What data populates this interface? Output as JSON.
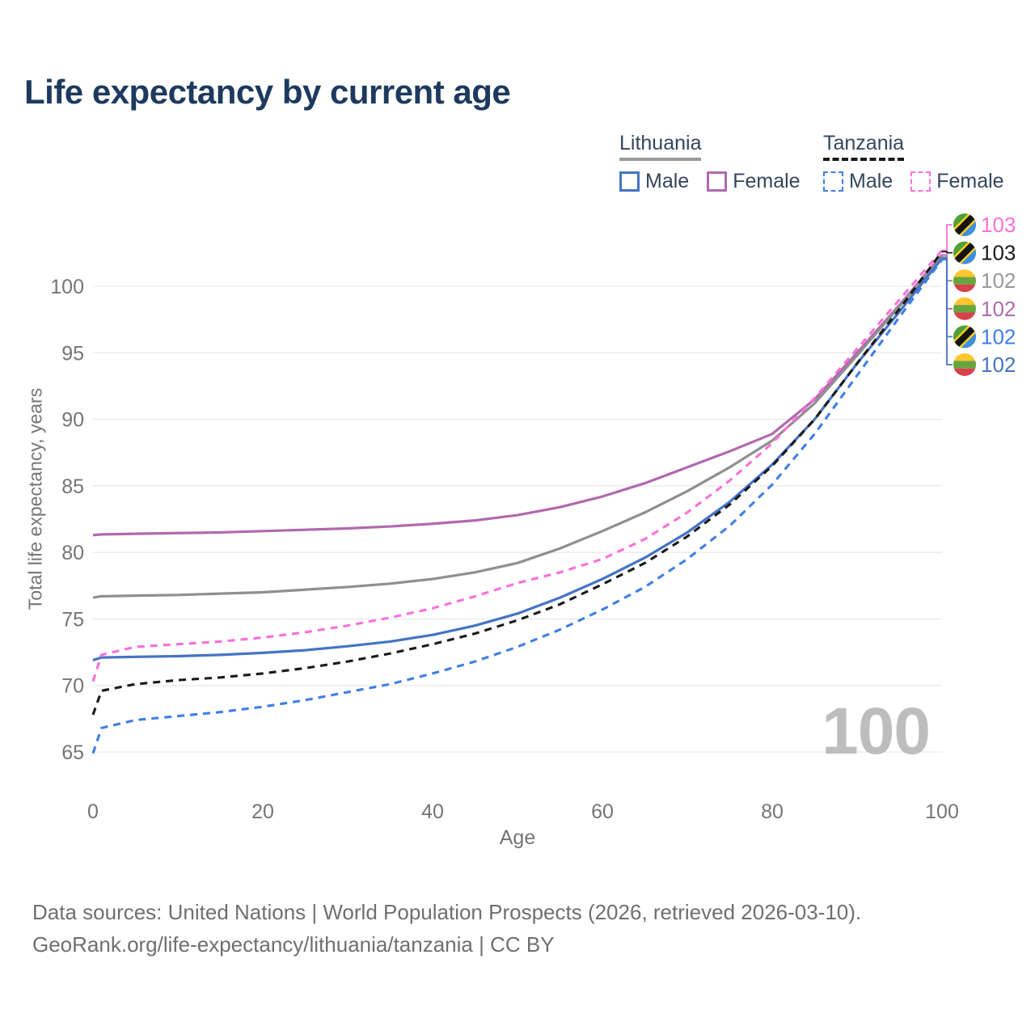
{
  "title": "Life expectancy by current age",
  "legend": {
    "groups": [
      {
        "label": "Lithuania",
        "line_style": "solid",
        "underline_color": "#999999",
        "items": [
          {
            "label": "Male",
            "color": "#4573c4"
          },
          {
            "label": "Female",
            "color": "#b069ae"
          }
        ]
      },
      {
        "label": "Tanzania",
        "line_style": "dashed",
        "underline_color": "#1a1a1a",
        "items": [
          {
            "label": "Male",
            "color": "#3e7ee8"
          },
          {
            "label": "Female",
            "color": "#fa70da"
          }
        ]
      }
    ]
  },
  "watermark": {
    "text": "100"
  },
  "footer": {
    "line1": "Data sources: United Nations | World Population Prospects (2026, retrieved 2026-03-10).",
    "line2": "GeoRank.org/life-expectancy/lithuania/tanzania | CC BY"
  },
  "chart_data": {
    "type": "line",
    "title": "Life expectancy by current age",
    "xlabel": "Age",
    "ylabel": "Total life expectancy, years",
    "x_ticks": [
      0,
      20,
      40,
      60,
      80,
      100
    ],
    "y_ticks": [
      65,
      70,
      75,
      80,
      85,
      90,
      95,
      100
    ],
    "xlim": [
      0,
      100
    ],
    "ylim": [
      64,
      104
    ],
    "grid": "horizontal-only",
    "legend_position": "top-right",
    "ages": [
      0,
      1,
      5,
      10,
      15,
      20,
      25,
      30,
      35,
      40,
      45,
      50,
      55,
      60,
      65,
      70,
      75,
      80,
      85,
      90,
      95,
      100
    ],
    "series": [
      {
        "name": "Lithuania Female",
        "country": "lithuania",
        "sex": "female",
        "color": "#b069ae",
        "dash": "solid",
        "values": [
          81.3,
          81.35,
          81.4,
          81.45,
          81.5,
          81.6,
          81.7,
          81.8,
          81.95,
          82.15,
          82.4,
          82.8,
          83.4,
          84.2,
          85.2,
          86.4,
          87.6,
          88.9,
          91.5,
          95.0,
          98.6,
          102.35
        ]
      },
      {
        "name": "Lithuania",
        "country": "lithuania",
        "sex": "both",
        "color": "#8f8f8f",
        "dash": "solid",
        "values": [
          76.6,
          76.7,
          76.75,
          76.8,
          76.9,
          77.0,
          77.2,
          77.4,
          77.65,
          78.0,
          78.5,
          79.2,
          80.3,
          81.6,
          83.0,
          84.6,
          86.4,
          88.4,
          91.2,
          94.8,
          98.5,
          102.2
        ]
      },
      {
        "name": "Lithuania Male",
        "country": "lithuania",
        "sex": "male",
        "color": "#4573c4",
        "dash": "solid",
        "values": [
          71.9,
          72.1,
          72.15,
          72.2,
          72.3,
          72.45,
          72.65,
          72.95,
          73.3,
          73.8,
          74.5,
          75.4,
          76.6,
          78.0,
          79.6,
          81.5,
          83.8,
          86.6,
          90.0,
          94.2,
          98.1,
          102.1
        ]
      },
      {
        "name": "Tanzania Female",
        "country": "tanzania",
        "sex": "female",
        "color": "#fa70da",
        "dash": "dashed",
        "values": [
          70.3,
          72.3,
          72.9,
          73.1,
          73.3,
          73.6,
          74.0,
          74.5,
          75.1,
          75.8,
          76.7,
          77.7,
          78.5,
          79.5,
          81.0,
          83.0,
          85.4,
          88.2,
          91.6,
          95.3,
          99.0,
          102.7
        ]
      },
      {
        "name": "Tanzania",
        "country": "tanzania",
        "sex": "both",
        "color": "#1a1a1a",
        "dash": "dashed",
        "values": [
          67.8,
          69.6,
          70.1,
          70.4,
          70.6,
          70.9,
          71.3,
          71.8,
          72.4,
          73.1,
          73.9,
          74.9,
          76.1,
          77.6,
          79.2,
          81.2,
          83.6,
          86.5,
          90.0,
          94.2,
          98.3,
          102.6
        ]
      },
      {
        "name": "Tanzania Male",
        "country": "tanzania",
        "sex": "male",
        "color": "#3e7ee8",
        "dash": "dashed",
        "values": [
          64.9,
          66.8,
          67.4,
          67.7,
          68.0,
          68.4,
          68.9,
          69.5,
          70.1,
          70.9,
          71.8,
          72.9,
          74.2,
          75.7,
          77.4,
          79.5,
          82.0,
          85.1,
          88.9,
          93.3,
          97.7,
          102.0
        ]
      }
    ],
    "end_labels": [
      {
        "value": "103",
        "series": "Tanzania Female",
        "color": "#fa70da",
        "flag": "tanzania"
      },
      {
        "value": "103",
        "series": "Tanzania",
        "color": "#1a1a1a",
        "flag": "tanzania"
      },
      {
        "value": "102",
        "series": "Lithuania",
        "color": "#999999",
        "flag": "lithuania"
      },
      {
        "value": "102",
        "series": "Lithuania Female",
        "color": "#b069ae",
        "flag": "lithuania"
      },
      {
        "value": "102",
        "series": "Tanzania Male",
        "color": "#3e7ee8",
        "flag": "tanzania"
      },
      {
        "value": "102",
        "series": "Lithuania Male",
        "color": "#4573c4",
        "flag": "lithuania"
      }
    ],
    "flag_colors": {
      "lithuania": {
        "yellow": "#fdc62e",
        "green": "#68a53e",
        "red": "#d9404a"
      },
      "tanzania": {
        "green": "#4fa03c",
        "blue": "#3f8ee0",
        "yellow": "#f9d018",
        "black": "#141414"
      }
    }
  }
}
